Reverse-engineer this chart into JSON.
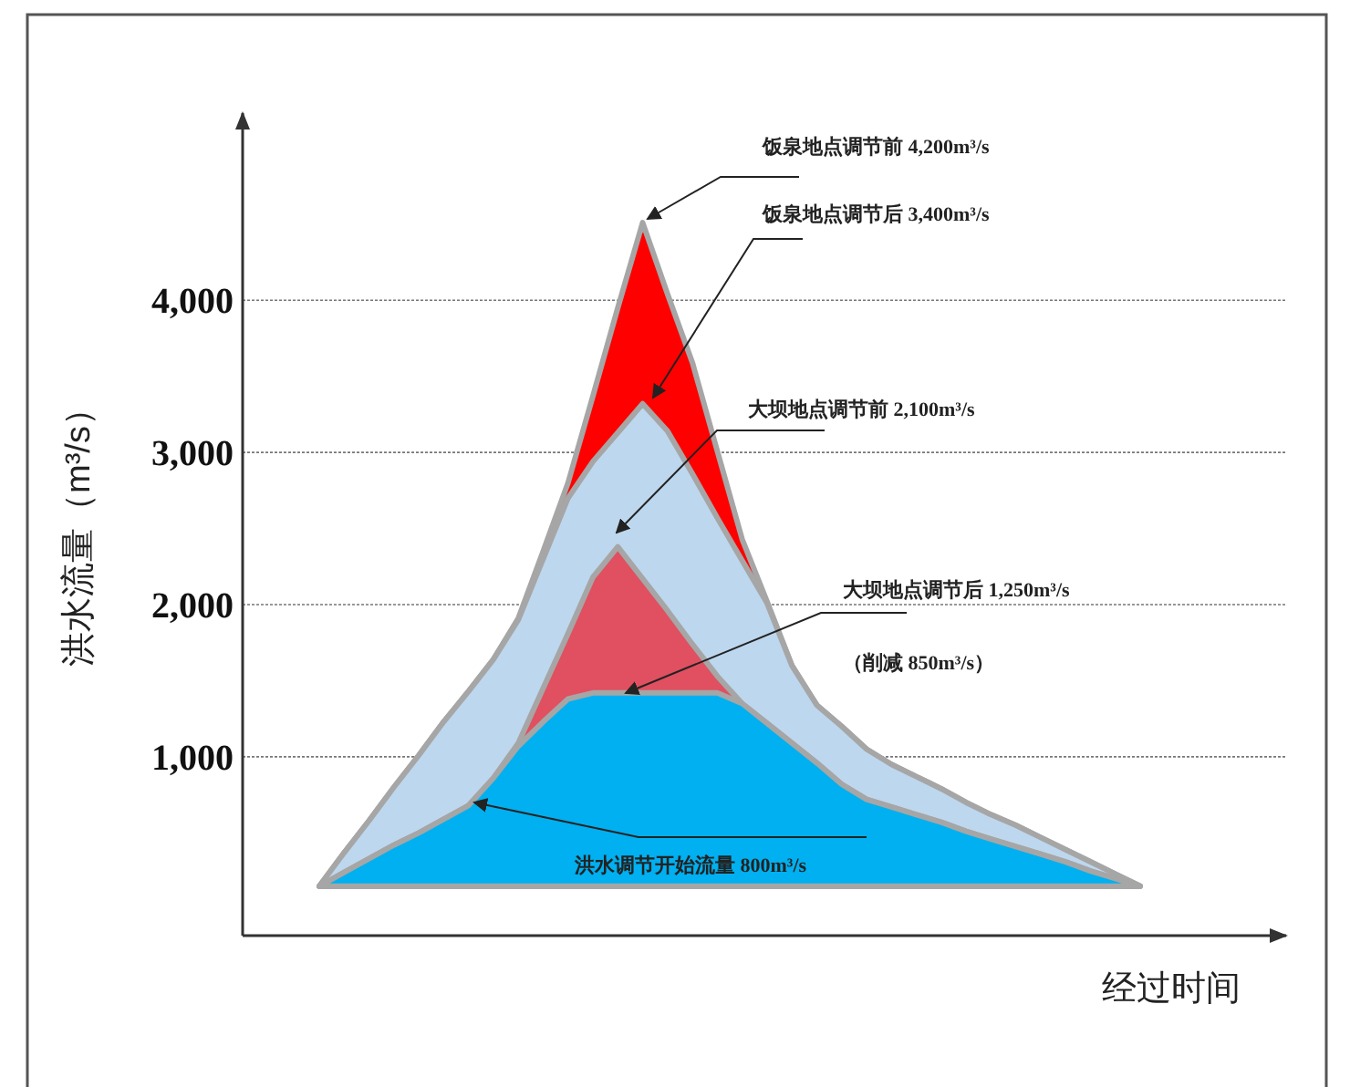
{
  "chart_data": {
    "type": "area",
    "ylabel": "洪水流量（m³/s）",
    "xlabel": "经过时间",
    "ylim": [
      -175,
      5230
    ],
    "yticks": [
      {
        "value": 1000,
        "label": "1,000"
      },
      {
        "value": 2000,
        "label": "2,000"
      },
      {
        "value": 3000,
        "label": "3,000"
      },
      {
        "value": 4000,
        "label": "4,000"
      }
    ],
    "grid": "y",
    "tick_labels": "y",
    "categories": [
      null,
      null,
      null,
      null,
      null,
      null,
      null,
      null,
      null,
      null,
      null,
      null,
      null,
      null,
      null,
      null,
      null,
      null,
      null,
      null,
      null,
      null,
      null,
      null,
      null,
      null,
      null,
      null,
      null,
      null,
      null,
      null,
      null,
      null
    ],
    "series": [
      {
        "color": "#ff0000",
        "values": [
          150,
          370,
          580,
          800,
          1010,
          1230,
          1430,
          1640,
          1910,
          2350,
          2800,
          3370,
          3950,
          4510,
          4040,
          3590,
          3010,
          2430,
          2020,
          1600,
          1340,
          1200,
          1050,
          950,
          870,
          790,
          700,
          620,
          550,
          470,
          390,
          310,
          230,
          150
        ]
      },
      {
        "color": "#bdd7ee",
        "values": [
          150,
          370,
          580,
          800,
          1010,
          1230,
          1430,
          1640,
          1900,
          2300,
          2700,
          2940,
          3130,
          3320,
          3140,
          2860,
          2570,
          2290,
          2010,
          1600,
          1340,
          1200,
          1050,
          950,
          870,
          790,
          700,
          620,
          550,
          470,
          390,
          310,
          230,
          150
        ]
      },
      {
        "color": "#e05060",
        "values": [
          150,
          240,
          330,
          420,
          500,
          590,
          680,
          860,
          1090,
          1450,
          1810,
          2180,
          2380,
          2170,
          1960,
          1740,
          1530,
          1350,
          1220,
          1090,
          960,
          820,
          720,
          670,
          620,
          570,
          510,
          460,
          410,
          360,
          310,
          250,
          200,
          150
        ]
      },
      {
        "color": "#00b0f0",
        "values": [
          150,
          240,
          330,
          420,
          500,
          590,
          680,
          860,
          1070,
          1230,
          1380,
          1420,
          1420,
          1420,
          1420,
          1420,
          1420,
          1350,
          1220,
          1090,
          960,
          820,
          720,
          670,
          620,
          570,
          510,
          460,
          410,
          360,
          310,
          250,
          200,
          150
        ]
      }
    ],
    "annotations": [
      "饭泉地点调节前 4,200m³/s",
      "饭泉地点调节后 3,400m³/s",
      "大坝地点调节前 2,100m³/s",
      "大坝地点调节后 1,250m³/s",
      "（削减 850m³/s）",
      "洪水调节开始流量 800m³/s"
    ]
  }
}
